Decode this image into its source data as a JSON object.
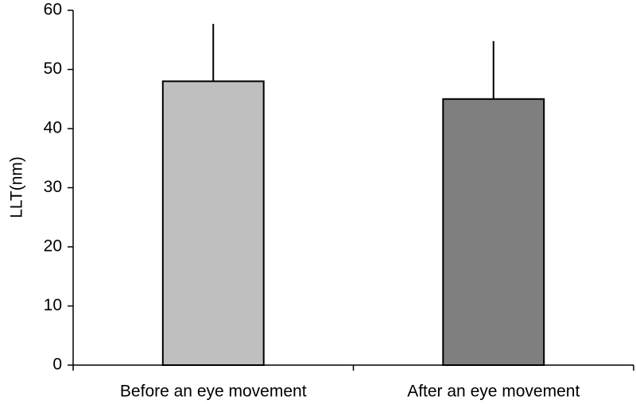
{
  "chart_data": {
    "type": "bar",
    "y_label": "LLT(nm)",
    "categories": [
      "Before an eye movement",
      "After an eye movement"
    ],
    "values": [
      48,
      45
    ],
    "errors": [
      9.7,
      9.8
    ],
    "colors": [
      "#bfbfbf",
      "#7f7f7f"
    ],
    "ylim": [
      0,
      60
    ],
    "yticks": [
      0,
      10,
      20,
      30,
      40,
      50,
      60
    ],
    "grid": false
  }
}
